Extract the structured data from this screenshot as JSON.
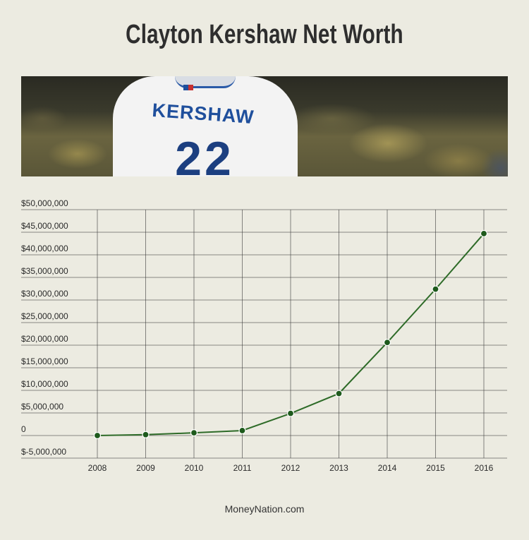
{
  "title": "Clayton Kershaw Net Worth",
  "banner": {
    "jersey_name": "KERSHAW",
    "jersey_number": "22"
  },
  "footer": "MoneyNation.com",
  "colors": {
    "background": "#ecebe1",
    "line": "#2e6b28",
    "marker": "#1e5a1c",
    "grid": "#3a3a3a"
  },
  "chart_data": {
    "type": "line",
    "title": "Clayton Kershaw Net Worth",
    "xlabel": "",
    "ylabel": "",
    "categories": [
      "2008",
      "2009",
      "2010",
      "2011",
      "2012",
      "2013",
      "2014",
      "2015",
      "2016"
    ],
    "series": [
      {
        "values": [
          0,
          200000,
          600000,
          1100000,
          4900000,
          9300000,
          20600000,
          32400000,
          44700000
        ]
      }
    ],
    "ylim": [
      -5000000,
      50000000
    ],
    "ytick_values": [
      50000000,
      45000000,
      40000000,
      35000000,
      30000000,
      25000000,
      20000000,
      15000000,
      10000000,
      5000000,
      0,
      -5000000
    ],
    "ytick_labels": [
      "$50,000,000",
      "$45,000,000",
      "$40,000,000",
      "$35,000,000",
      "$30,000,000",
      "$25,000,000",
      "$20,000,000",
      "$15,000,000",
      "$10,000,000",
      "$5,000,000",
      "0",
      "$-5,000,000"
    ],
    "grid": true,
    "legend": "none"
  }
}
